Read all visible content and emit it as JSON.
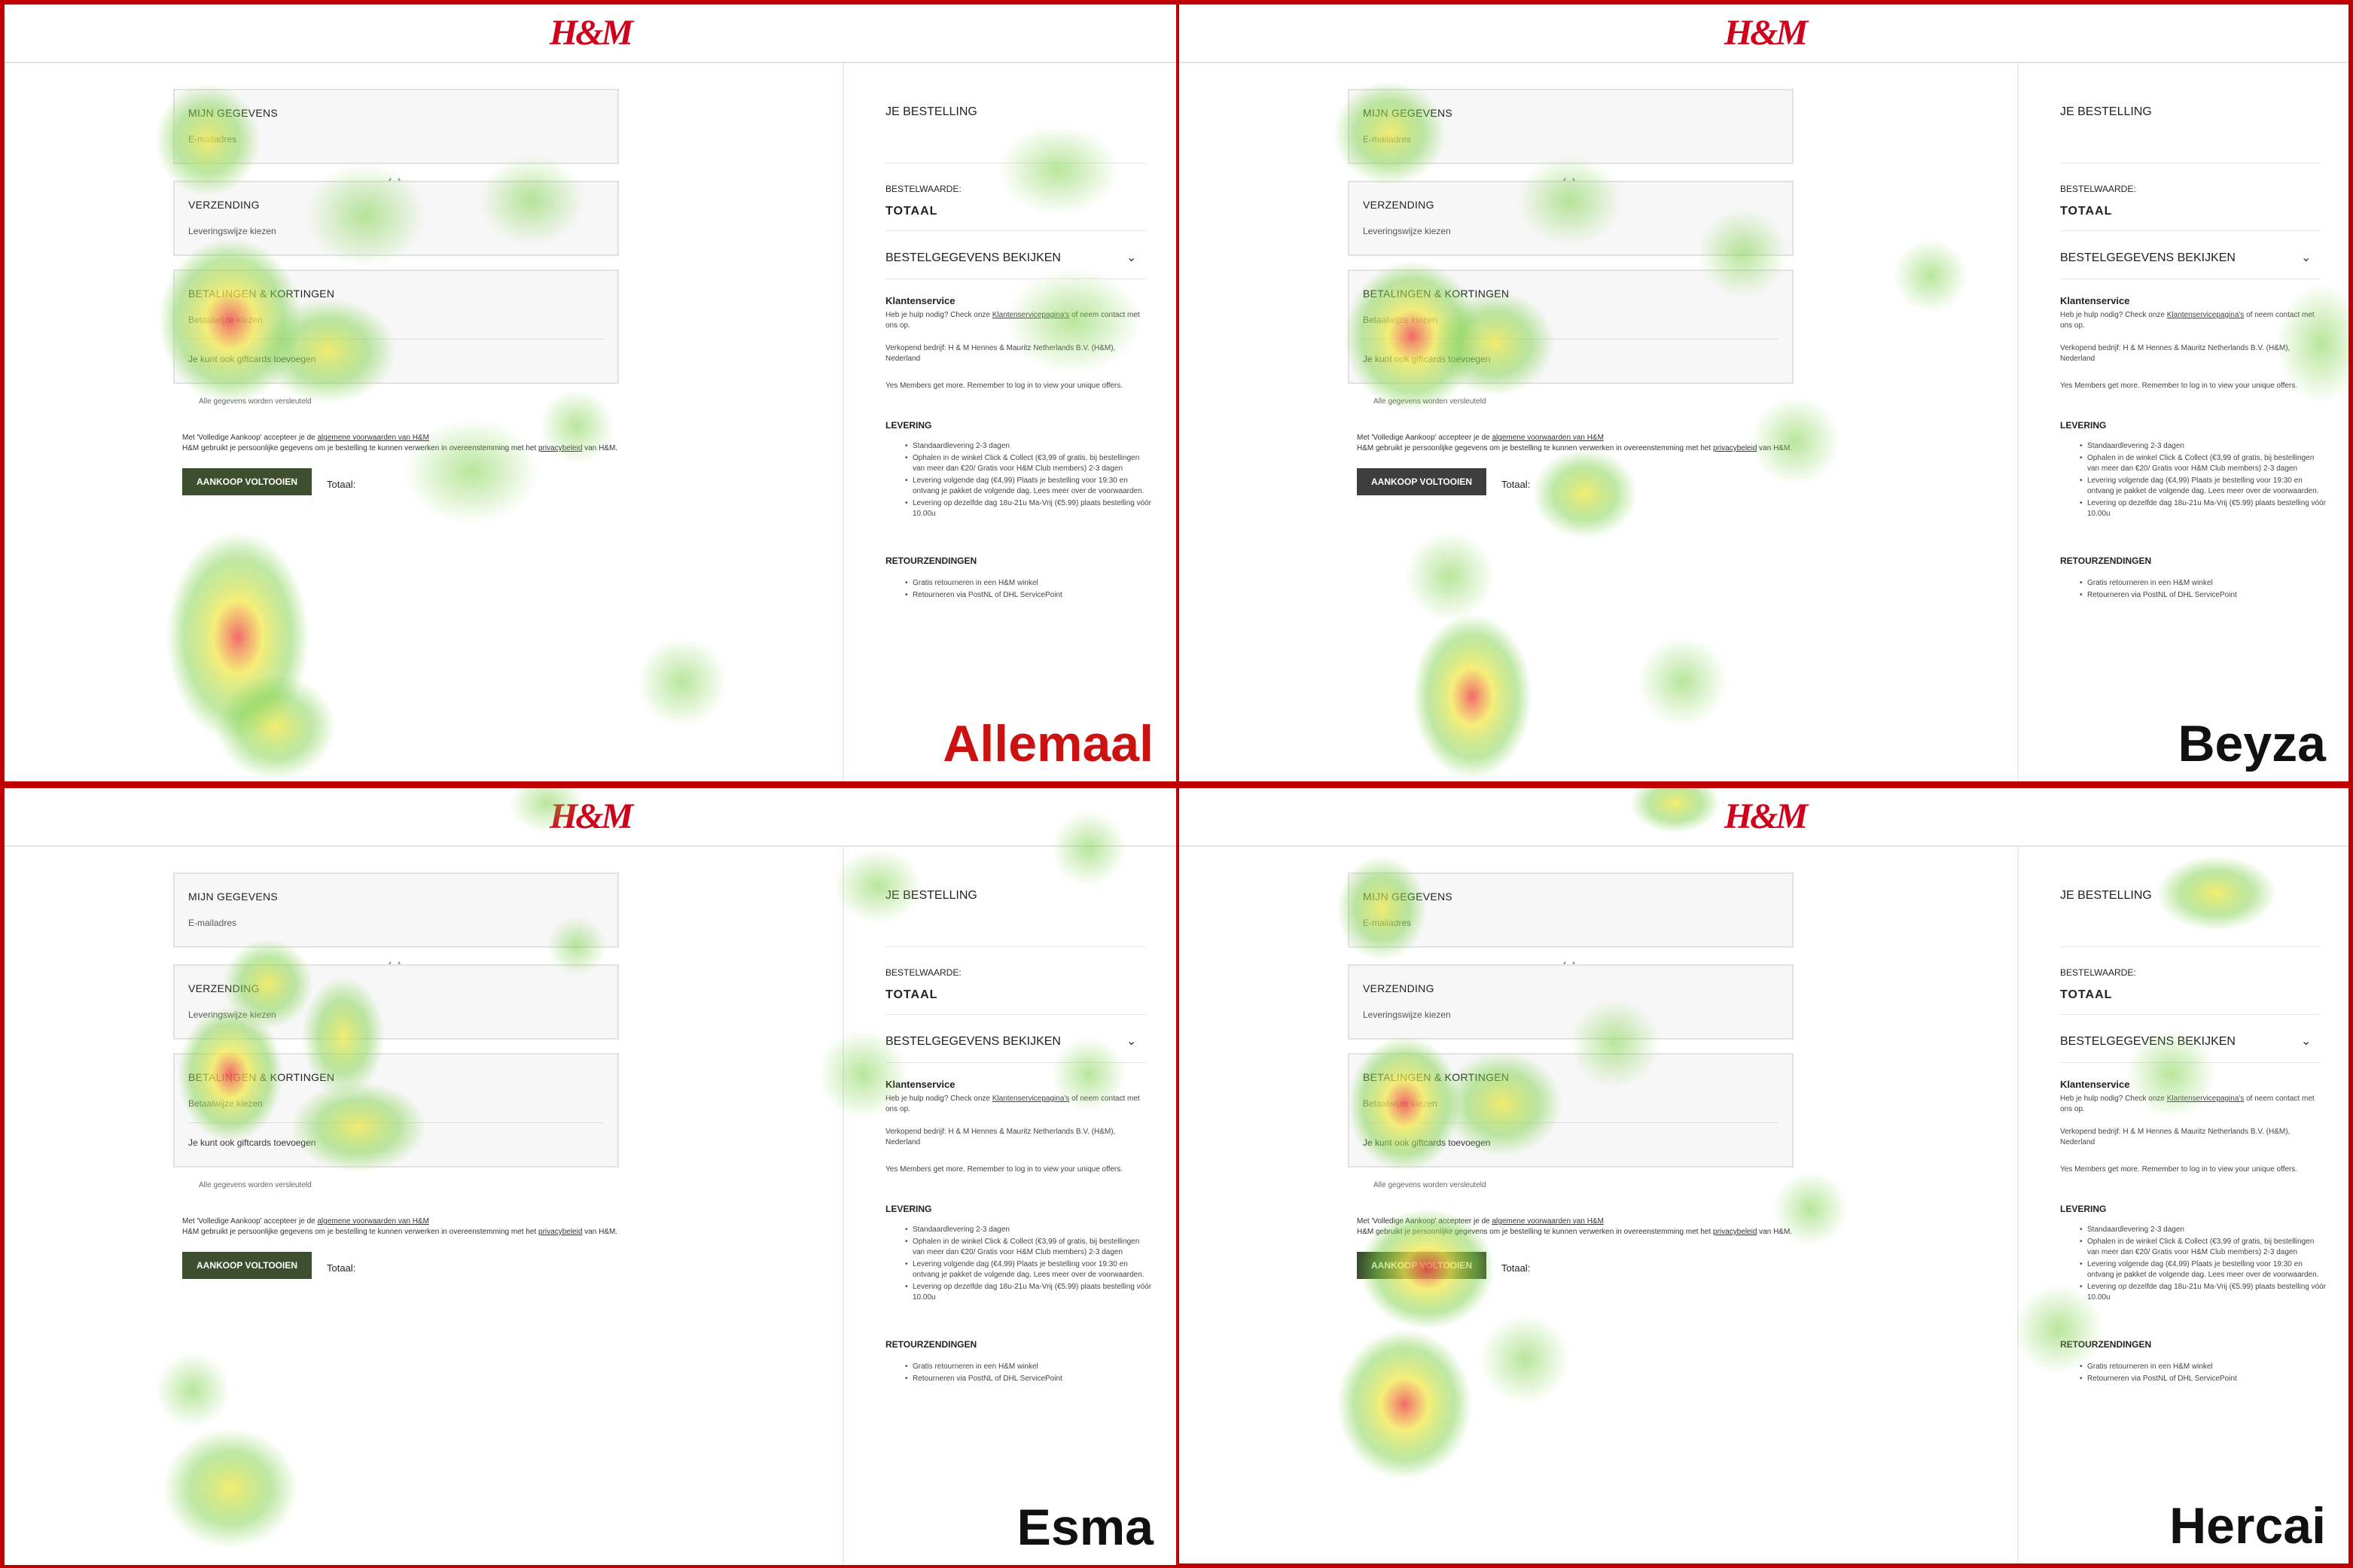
{
  "screen": {
    "logo": "H&M",
    "mijn_gegevens": "MIJN GEGEVENS",
    "email": "E-mailadres",
    "verzending": "VERZENDING",
    "leveringswijze": "Leveringswijze kiezen",
    "betalingen": "BETALINGEN & KORTINGEN",
    "betaalwijze": "Betaalwijze kiezen",
    "giftcards": "Je kunt ook giftcards toevoegen",
    "encrypted": "Alle gegevens worden versleuteld",
    "legal_line1_a": "Met 'Volledige Aankoop' accepteer je de ",
    "legal_line1_link": "algemene voorwaarden van H&M",
    "legal_line2_a": "H&M gebruikt je persoonlijke gegevens om je bestelling te kunnen verwerken in overeenstemming met het ",
    "legal_line2_link": "privacybeleid",
    "legal_line2_b": " van H&M.",
    "buy_button": "AANKOOP VOLTOOIEN",
    "totaal_label": "Totaal:",
    "je_bestelling": "JE BESTELLING",
    "bestelwaarde": "BESTELWAARDE:",
    "totaal_upper": "TOTAAL",
    "bestelgegevens": "BESTELGEGEVENS BEKIJKEN",
    "klantenservice": "Klantenservice",
    "hulp_a": "Heb je hulp nodig? Check onze ",
    "hulp_link": "Klantenservicepagina's",
    "hulp_b": " of neem contact met ons op.",
    "verkopend": "Verkopend bedrijf: H & M Hennes & Mauritz Netherlands B.V. (H&M), Nederland",
    "yes_members": "Yes Members get more. Remember to log in to view your unique offers.",
    "levering": "LEVERING",
    "levering_items": [
      "Standaardlevering 2-3 dagen",
      "Ophalen in de winkel Click & Collect (€3,99 of gratis, bij bestellingen van meer dan €20/ Gratis voor H&M Club members) 2-3 dagen",
      "Levering volgende dag (€4,99) Plaats je bestelling voor 19:30 en ontvang je pakket de volgende dag. Lees meer over de voorwaarden.",
      "Levering op dezelfde dag 18u-21u Ma-Vrij (€5.99) plaats bestelling vóór 10.00u"
    ],
    "retourzendingen": "RETOURZENDINGEN",
    "retour_items": [
      "Gratis retourneren in een H&M winkel",
      "Retourneren via PostNL of DHL ServicePoint"
    ]
  },
  "panels": [
    {
      "label": "Allemaal",
      "label_color": "#cc1111",
      "button_color": "#3d4f2f"
    },
    {
      "label": "Beyza",
      "label_color": "#111111",
      "button_color": "#3e3e3e"
    },
    {
      "label": "Esma",
      "label_color": "#111111",
      "button_color": "#3d4f2f"
    },
    {
      "label": "Hercai",
      "label_color": "#111111",
      "button_color": "#3d4f2f"
    }
  ],
  "colors": {
    "border": "#c00000",
    "heat_low": "#7fd14a",
    "heat_mid": "#f2e94e",
    "heat_high": "#f05050"
  }
}
